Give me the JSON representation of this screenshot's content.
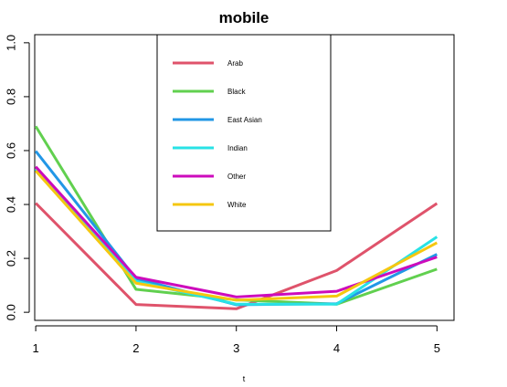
{
  "chart_data": {
    "type": "line",
    "title": "mobile",
    "xlabel": "t",
    "ylabel": "",
    "x": [
      1,
      2,
      3,
      4,
      5
    ],
    "xlim": [
      0.99,
      5.17
    ],
    "ylim": [
      -0.03,
      1.03
    ],
    "x_ticks": [
      "1",
      "2",
      "3",
      "4",
      "5"
    ],
    "y_ticks": [
      "0.0",
      "0.2",
      "0.4",
      "0.6",
      "0.8",
      "1.0"
    ],
    "legend_position": "top-center",
    "series": [
      {
        "name": "Arab",
        "color": "#DF536B",
        "values": [
          0.405,
          0.029,
          0.013,
          0.155,
          0.404
        ]
      },
      {
        "name": "Black",
        "color": "#61D04F",
        "values": [
          0.69,
          0.085,
          0.046,
          0.03,
          0.16
        ]
      },
      {
        "name": "East Asian",
        "color": "#2297E6",
        "values": [
          0.598,
          0.125,
          0.028,
          0.032,
          0.215
        ]
      },
      {
        "name": "Indian",
        "color": "#28E2E5",
        "values": [
          0.53,
          0.115,
          0.03,
          0.03,
          0.28
        ]
      },
      {
        "name": "Other",
        "color": "#CD0BBC",
        "values": [
          0.54,
          0.13,
          0.057,
          0.078,
          0.205
        ]
      },
      {
        "name": "White",
        "color": "#F5C710",
        "values": [
          0.525,
          0.108,
          0.045,
          0.06,
          0.258
        ]
      }
    ]
  }
}
